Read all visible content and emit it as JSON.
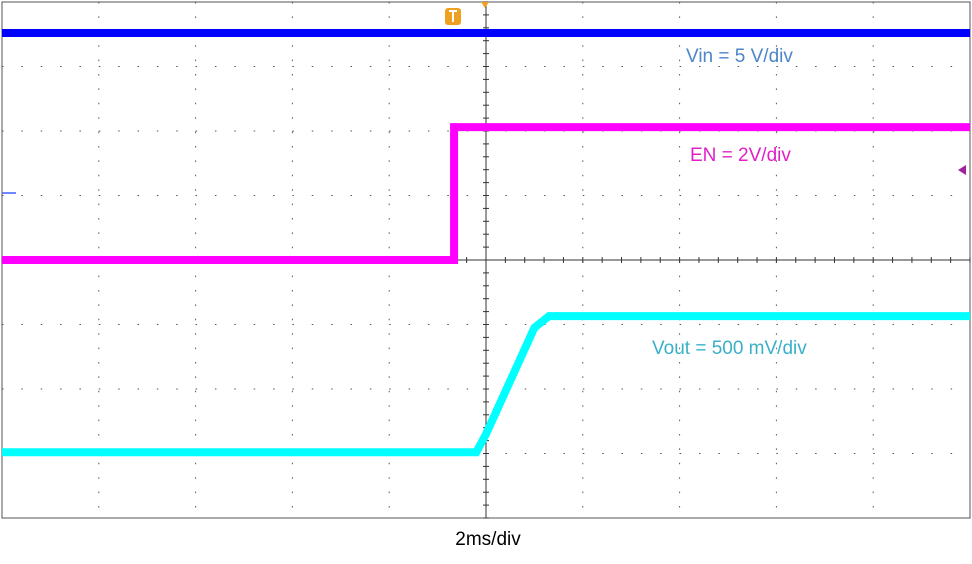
{
  "chart_data": {
    "type": "line",
    "xlabel": "2ms/div",
    "xlim": [
      0,
      10
    ],
    "ylim": [
      0,
      8
    ],
    "xticks": [
      0,
      1,
      2,
      3,
      4,
      5,
      6,
      7,
      8,
      9,
      10
    ],
    "yticks": [
      0,
      1,
      2,
      3,
      4,
      5,
      6,
      7,
      8
    ],
    "grid": true,
    "series": [
      {
        "name": "Vin = 5 V/div",
        "color": "#0000ff",
        "x": [
          0,
          10
        ],
        "values": [
          7.52,
          7.52
        ]
      },
      {
        "name": "EN = 2V/div",
        "color": "#ff00ff",
        "x": [
          0,
          4.67,
          4.67,
          10
        ],
        "values": [
          4.0,
          4.0,
          6.06,
          6.06
        ]
      },
      {
        "name": "Vout = 500 mV/div",
        "color": "#00ffff",
        "x": [
          0,
          4.9,
          5.0,
          5.5,
          5.65,
          10
        ],
        "values": [
          1.02,
          1.02,
          1.3,
          2.95,
          3.13,
          3.13
        ]
      }
    ],
    "label_colors": [
      "#4a86c8",
      "#e020c8",
      "#3ab0c8"
    ]
  }
}
